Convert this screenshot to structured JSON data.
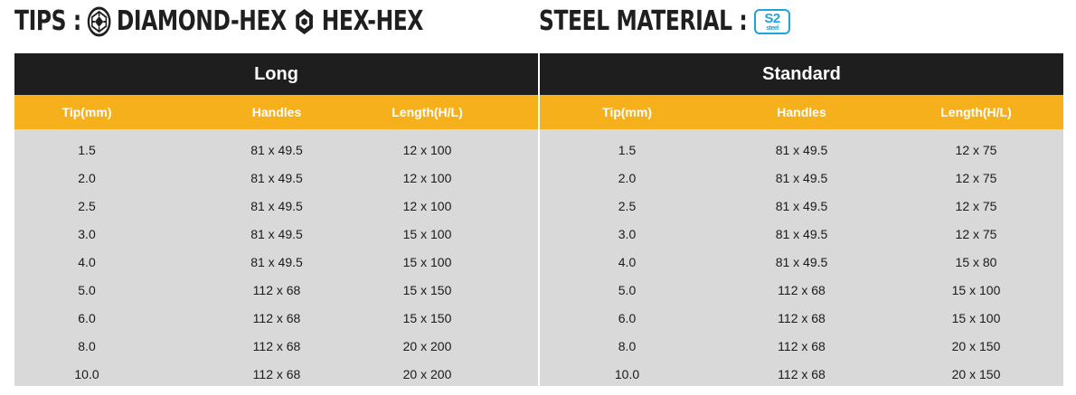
{
  "header": {
    "tips_label": "TIPS :",
    "tip1_label": "DIAMOND-HEX",
    "tip2_label": "HEX-HEX",
    "steel_label": "STEEL MATERIAL :",
    "badge_main": "S2",
    "badge_sub": "steel"
  },
  "columns": [
    "Tip(mm)",
    "Handles",
    "Length(H/L)"
  ],
  "long": {
    "title": "Long",
    "rows": [
      [
        "1.5",
        "81 x 49.5",
        "12 x 100"
      ],
      [
        "2.0",
        "81 x 49.5",
        "12 x 100"
      ],
      [
        "2.5",
        "81 x 49.5",
        "12 x 100"
      ],
      [
        "3.0",
        "81 x 49.5",
        "15 x 100"
      ],
      [
        "4.0",
        "81 x 49.5",
        "15 x 100"
      ],
      [
        "5.0",
        "112 x 68",
        "15 x 150"
      ],
      [
        "6.0",
        "112 x 68",
        "15 x 150"
      ],
      [
        "8.0",
        "112 x 68",
        "20 x 200"
      ],
      [
        "10.0",
        "112 x 68",
        "20 x 200"
      ]
    ]
  },
  "standard": {
    "title": "Standard",
    "rows": [
      [
        "1.5",
        "81 x 49.5",
        "12 x 75"
      ],
      [
        "2.0",
        "81 x 49.5",
        "12 x 75"
      ],
      [
        "2.5",
        "81 x 49.5",
        "12 x 75"
      ],
      [
        "3.0",
        "81 x 49.5",
        "12 x 75"
      ],
      [
        "4.0",
        "81 x 49.5",
        "15 x 80"
      ],
      [
        "5.0",
        "112 x 68",
        "15 x 100"
      ],
      [
        "6.0",
        "112 x 68",
        "15 x 100"
      ],
      [
        "8.0",
        "112 x 68",
        "20 x 150"
      ],
      [
        "10.0",
        "112 x 68",
        "20 x 150"
      ]
    ]
  },
  "colors": {
    "title_bar": "#1e1e1f",
    "column_bar": "#f6b01c",
    "body_bg": "#d9d9da",
    "badge": "#1fa4d8"
  },
  "icons": [
    "diamond-hex-icon",
    "hex-hex-icon"
  ]
}
